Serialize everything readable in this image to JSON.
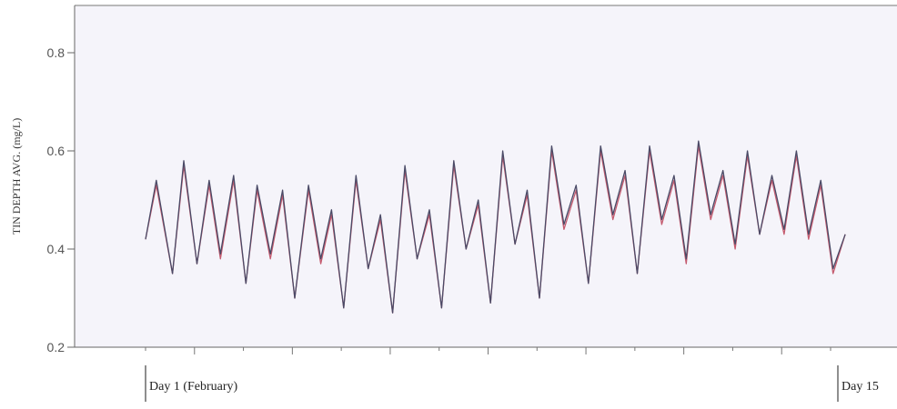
{
  "chart_data": {
    "type": "line",
    "title": "",
    "ylabel": "TIN DEPTH AVG. (mg/L)",
    "xlabel": "",
    "ylim": [
      0.2,
      0.9
    ],
    "yticks": [
      0.2,
      0.4,
      0.6,
      0.8
    ],
    "ytick_labels": [
      "0.2",
      "0.4",
      "0.6",
      "0.8"
    ],
    "xlim": [
      0.15,
      15
    ],
    "day_markers": [
      {
        "day": 1,
        "label": "Day 1 (February)"
      },
      {
        "day": 15,
        "label": "Day 15"
      }
    ],
    "grid": false,
    "legend": "none",
    "x": [
      1.0,
      1.22,
      1.55,
      1.78,
      2.05,
      2.3,
      2.53,
      2.8,
      3.05,
      3.28,
      3.55,
      3.8,
      4.05,
      4.33,
      4.58,
      4.8,
      5.05,
      5.3,
      5.55,
      5.8,
      6.05,
      6.3,
      6.55,
      6.8,
      7.05,
      7.3,
      7.55,
      7.8,
      8.05,
      8.3,
      8.55,
      8.8,
      9.05,
      9.3,
      9.55,
      9.8,
      10.05,
      10.3,
      10.55,
      10.8,
      11.05,
      11.3,
      11.55,
      11.8,
      12.05,
      12.3,
      12.55,
      12.8,
      13.05,
      13.3,
      13.55,
      13.8,
      14.05,
      14.3,
      14.55,
      14.8,
      15.05,
      15.3
    ],
    "series": [
      {
        "color": "#4a4a66",
        "values": [
          0.42,
          0.54,
          0.35,
          0.58,
          0.37,
          0.54,
          0.39,
          0.55,
          0.33,
          0.53,
          0.39,
          0.52,
          0.3,
          0.53,
          0.38,
          0.48,
          0.28,
          0.55,
          0.36,
          0.47,
          0.27,
          0.57,
          0.38,
          0.48,
          0.28,
          0.58,
          0.4,
          0.5,
          0.29,
          0.6,
          0.41,
          0.52,
          0.3,
          0.61,
          0.45,
          0.53,
          0.33,
          0.61,
          0.47,
          0.56,
          0.35,
          0.61,
          0.46,
          0.55,
          0.38,
          0.62,
          0.47,
          0.56,
          0.41,
          0.6,
          0.43,
          0.55,
          0.44,
          0.6,
          0.43,
          0.54,
          0.36,
          0.43
        ]
      },
      {
        "color": "#c45a6e",
        "values": [
          0.42,
          0.53,
          0.35,
          0.57,
          0.37,
          0.53,
          0.38,
          0.54,
          0.33,
          0.52,
          0.38,
          0.51,
          0.3,
          0.52,
          0.37,
          0.47,
          0.28,
          0.54,
          0.36,
          0.46,
          0.27,
          0.56,
          0.38,
          0.47,
          0.28,
          0.57,
          0.4,
          0.49,
          0.29,
          0.59,
          0.41,
          0.51,
          0.3,
          0.6,
          0.44,
          0.52,
          0.33,
          0.6,
          0.46,
          0.55,
          0.35,
          0.6,
          0.45,
          0.54,
          0.37,
          0.61,
          0.46,
          0.55,
          0.4,
          0.59,
          0.43,
          0.54,
          0.43,
          0.59,
          0.42,
          0.53,
          0.35,
          0.43
        ]
      }
    ]
  }
}
